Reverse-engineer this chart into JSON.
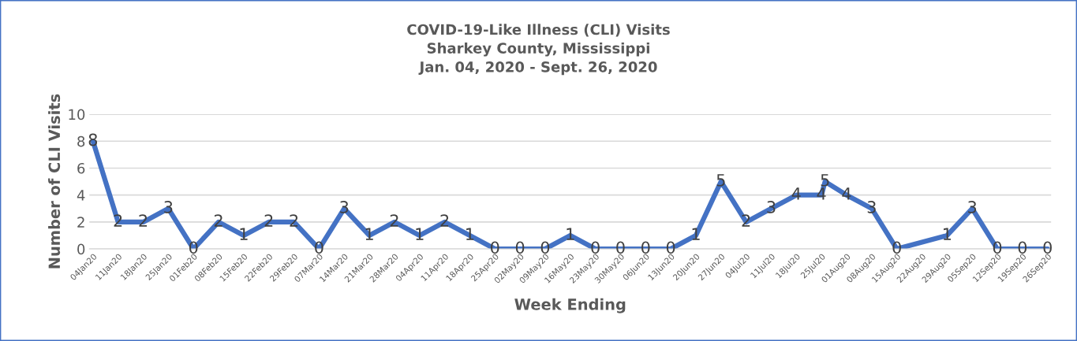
{
  "chart_data": {
    "type": "line",
    "title": "COVID-19-Like Illness (CLI) Visits\nSharkey County, Mississippi\nJan. 04, 2020 - Sept. 26, 2020",
    "xlabel": "Week Ending",
    "ylabel": "Number of CLI Visits",
    "x": [
      "2020-01-04",
      "2020-01-11",
      "2020-01-18",
      "2020-01-25",
      "2020-02-01",
      "2020-02-08",
      "2020-02-15",
      "2020-02-22",
      "2020-02-29",
      "2020-03-07",
      "2020-03-14",
      "2020-03-21",
      "2020-03-28",
      "2020-04-04",
      "2020-04-11",
      "2020-04-18",
      "2020-04-25",
      "2020-05-02",
      "2020-05-09",
      "2020-05-16",
      "2020-05-23",
      "2020-05-30",
      "2020-06-06",
      "2020-06-13",
      "2020-06-20",
      "2020-06-27",
      "2020-07-04",
      "2020-07-11",
      "2020-07-18",
      "2020-07-25",
      "2020-07-26",
      "2020-08-01",
      "2020-08-08",
      "2020-08-15",
      "2020-08-29",
      "2020-09-05",
      "2020-09-12",
      "2020-09-19",
      "2020-09-26"
    ],
    "series": [
      {
        "color": "#4472c4",
        "values": [
          8,
          2,
          2,
          3,
          0,
          2,
          1,
          2,
          2,
          0,
          3,
          1,
          2,
          1,
          2,
          1,
          0,
          0,
          0,
          1,
          0,
          0,
          0,
          0,
          1,
          5,
          2,
          3,
          4,
          4,
          5,
          4,
          3,
          0,
          1,
          3,
          0,
          0,
          0
        ]
      }
    ],
    "data_labels": true,
    "xlim": [
      "2020-01-03",
      "2020-09-27"
    ],
    "xticks": [
      {
        "value": "2020-01-04",
        "label": "04Jan20"
      },
      {
        "value": "2020-01-11",
        "label": "11Jan20"
      },
      {
        "value": "2020-01-18",
        "label": "18Jan20"
      },
      {
        "value": "2020-01-25",
        "label": "25Jan20"
      },
      {
        "value": "2020-02-01",
        "label": "01Feb20"
      },
      {
        "value": "2020-02-08",
        "label": "08Feb20"
      },
      {
        "value": "2020-02-15",
        "label": "15Feb20"
      },
      {
        "value": "2020-02-22",
        "label": "22Feb20"
      },
      {
        "value": "2020-02-29",
        "label": "29Feb20"
      },
      {
        "value": "2020-03-07",
        "label": "07Mar20"
      },
      {
        "value": "2020-03-14",
        "label": "14Mar20"
      },
      {
        "value": "2020-03-21",
        "label": "21Mar20"
      },
      {
        "value": "2020-03-28",
        "label": "28Mar20"
      },
      {
        "value": "2020-04-04",
        "label": "04Apr20"
      },
      {
        "value": "2020-04-11",
        "label": "11Apr20"
      },
      {
        "value": "2020-04-18",
        "label": "18Apr20"
      },
      {
        "value": "2020-04-25",
        "label": "25Apr20"
      },
      {
        "value": "2020-05-02",
        "label": "02May20"
      },
      {
        "value": "2020-05-09",
        "label": "09May20"
      },
      {
        "value": "2020-05-16",
        "label": "16May20"
      },
      {
        "value": "2020-05-23",
        "label": "23May20"
      },
      {
        "value": "2020-05-30",
        "label": "30May20"
      },
      {
        "value": "2020-06-06",
        "label": "06Jun20"
      },
      {
        "value": "2020-06-13",
        "label": "13Jun20"
      },
      {
        "value": "2020-06-20",
        "label": "20Jun20"
      },
      {
        "value": "2020-06-27",
        "label": "27Jun20"
      },
      {
        "value": "2020-07-04",
        "label": "04Jul20"
      },
      {
        "value": "2020-07-11",
        "label": "11Jul20"
      },
      {
        "value": "2020-07-18",
        "label": "18Jul20"
      },
      {
        "value": "2020-07-25",
        "label": "25Jul20"
      },
      {
        "value": "2020-08-01",
        "label": "01Aug20"
      },
      {
        "value": "2020-08-08",
        "label": "08Aug20"
      },
      {
        "value": "2020-08-15",
        "label": "15Aug20"
      },
      {
        "value": "2020-08-22",
        "label": "22Aug20"
      },
      {
        "value": "2020-08-29",
        "label": "29Aug20"
      },
      {
        "value": "2020-09-05",
        "label": "05Sep20"
      },
      {
        "value": "2020-09-12",
        "label": "12Sep20"
      },
      {
        "value": "2020-09-19",
        "label": "19Sep20"
      },
      {
        "value": "2020-09-26",
        "label": "26Sep20"
      }
    ],
    "ylim": [
      0,
      10
    ],
    "yticks": [
      0,
      2,
      4,
      6,
      8,
      10
    ],
    "grid": "y",
    "legend": false,
    "marker": "none",
    "line_style": "solid"
  }
}
